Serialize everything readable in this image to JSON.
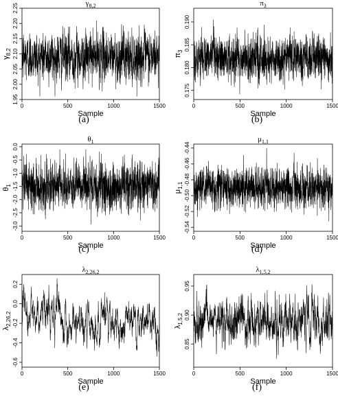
{
  "figure": {
    "x_axis_label": "Sample",
    "captions": [
      "(a)",
      "(b)",
      "(c)",
      "(d)",
      "(e)",
      "(f)"
    ]
  },
  "chart_data": [
    {
      "type": "line",
      "title": "γ8,2",
      "ylabel": "γ8,2",
      "xlabel": "Sample",
      "caption": "(a)",
      "xlim": [
        0,
        1500
      ],
      "ylim": [
        1.95,
        2.25
      ],
      "xticks": [
        "0",
        "500",
        "1000",
        "1500"
      ],
      "yticks": [
        "1.95",
        "2.00",
        "2.05",
        "2.10",
        "2.15",
        "2.20",
        "2.25"
      ],
      "series": [
        {
          "n": 1500,
          "mean": 2.09,
          "sd": 0.04,
          "min": 1.96,
          "max": 2.23,
          "autocorr": 0.3
        }
      ]
    },
    {
      "type": "line",
      "title": "π3",
      "ylabel": "π3",
      "xlabel": "Sample",
      "caption": "(b)",
      "xlim": [
        0,
        1500
      ],
      "ylim": [
        0.173,
        0.193
      ],
      "xticks": [
        "0",
        "500",
        "1000",
        "1500"
      ],
      "yticks": [
        "0.175",
        "0.180",
        "0.185",
        "0.190"
      ],
      "series": [
        {
          "n": 1500,
          "mean": 0.182,
          "sd": 0.0025,
          "min": 0.174,
          "max": 0.192,
          "autocorr": 0.2
        }
      ]
    },
    {
      "type": "line",
      "title": "θ1",
      "ylabel": "θ1",
      "xlabel": "Sample",
      "caption": "(c)",
      "xlim": [
        0,
        1500
      ],
      "ylim": [
        -3.2,
        0.1
      ],
      "xticks": [
        "0",
        "500",
        "1000",
        "1500"
      ],
      "yticks": [
        "0.0",
        "-0.5",
        "-1.0",
        "-1.5",
        "-2.0",
        "-2.5",
        "-3.0"
      ],
      "series": [
        {
          "n": 1500,
          "mean": -1.5,
          "sd": 0.45,
          "min": -3.1,
          "max": -0.05,
          "autocorr": 0.2
        }
      ]
    },
    {
      "type": "line",
      "title": "μ1,1",
      "ylabel": "μ1,1",
      "xlabel": "Sample",
      "caption": "(d)",
      "xlim": [
        0,
        1500
      ],
      "ylim": [
        -0.545,
        -0.435
      ],
      "xticks": [
        "0",
        "500",
        "1000",
        "1500"
      ],
      "yticks": [
        "-0.44",
        "-0.46",
        "-0.48",
        "-0.50",
        "-0.52",
        "-0.54"
      ],
      "series": [
        {
          "n": 1500,
          "mean": -0.49,
          "sd": 0.013,
          "min": -0.54,
          "max": -0.44,
          "autocorr": 0.2
        }
      ]
    },
    {
      "type": "line",
      "title": "λ2,26,2",
      "ylabel": "λ2,26,2",
      "xlabel": "Sample",
      "caption": "(e)",
      "xlim": [
        0,
        1500
      ],
      "ylim": [
        -0.65,
        0.3
      ],
      "xticks": [
        "0",
        "500",
        "1000",
        "1500"
      ],
      "yticks": [
        "0.2",
        "0.0",
        "-0.2",
        "-0.4",
        "-0.6"
      ],
      "series": [
        {
          "n": 1500,
          "mean": -0.15,
          "sd": 0.13,
          "min": -0.6,
          "max": 0.28,
          "autocorr": 0.9
        }
      ]
    },
    {
      "type": "line",
      "title": "λ1,5,2",
      "ylabel": "λ1,5,2",
      "xlabel": "Sample",
      "caption": "(f)",
      "xlim": [
        0,
        1500
      ],
      "ylim": [
        0.81,
        0.97
      ],
      "xticks": [
        "0",
        "500",
        "1000",
        "1500"
      ],
      "yticks": [
        "0.85",
        "0.90",
        "0.95"
      ],
      "series": [
        {
          "n": 1500,
          "mean": 0.89,
          "sd": 0.022,
          "min": 0.815,
          "max": 0.965,
          "autocorr": 0.75
        }
      ]
    }
  ]
}
